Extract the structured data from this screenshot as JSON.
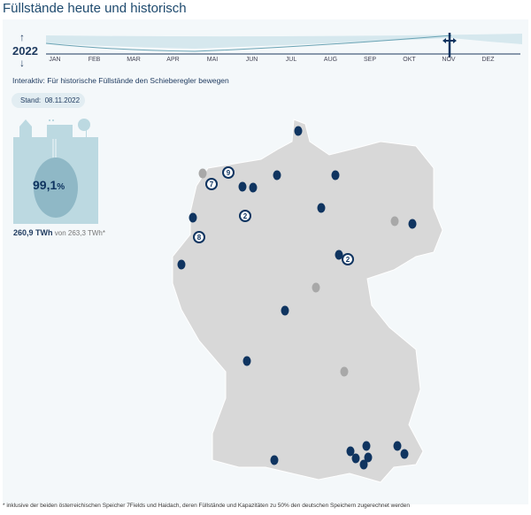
{
  "title": "Füllstände heute und historisch",
  "timeline": {
    "year": "2022",
    "up": "↑",
    "down": "↓",
    "months": [
      "JAN",
      "FEB",
      "MAR",
      "APR",
      "MAI",
      "JUN",
      "JUL",
      "AUG",
      "SEP",
      "OKT",
      "NOV",
      "DEZ"
    ],
    "selected_month": "NOV"
  },
  "hint": "Interaktiv: Für historische Füllstände den Schieberegler bewegen",
  "stand": {
    "label": "Stand:",
    "date": "08.11.2022"
  },
  "fill": {
    "percent": "99,1",
    "unit": "%",
    "value": "260,9 TWh",
    "of": "von 263,3 TWh*"
  },
  "badges": [
    "9",
    "7",
    "2",
    "8",
    "2"
  ],
  "footnote": "* inklusive der beiden österreichischen Speicher 7Fields und Haidach, deren Füllstände und Kapazitäten zu 50% den deutschen Speichern zugerechnet werden",
  "colors": {
    "accent": "#0f3460",
    "map": "#d8d8d8",
    "light": "#bcd9e1"
  }
}
